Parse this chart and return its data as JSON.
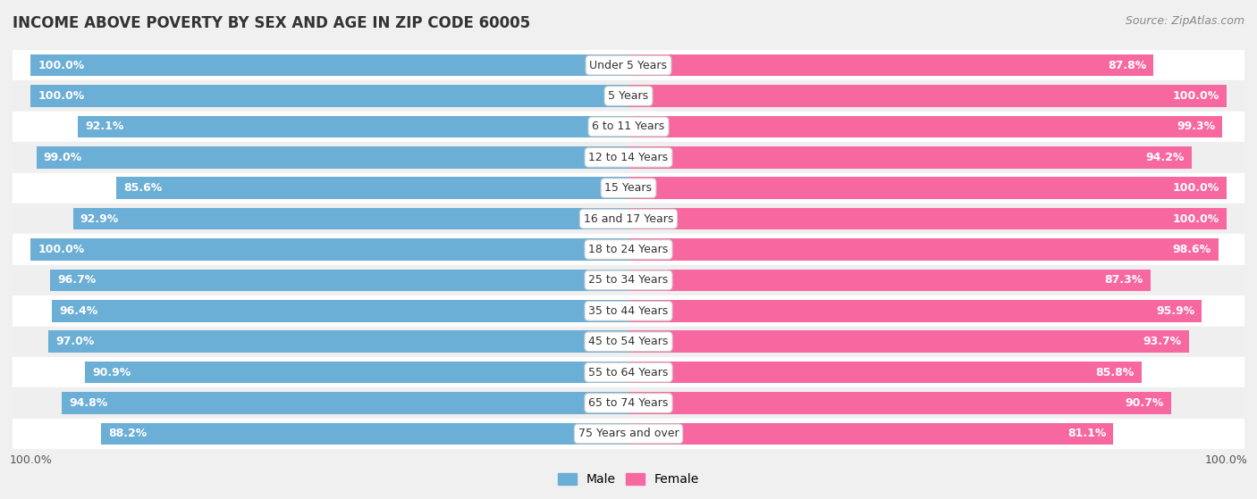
{
  "title": "INCOME ABOVE POVERTY BY SEX AND AGE IN ZIP CODE 60005",
  "source": "Source: ZipAtlas.com",
  "categories": [
    "Under 5 Years",
    "5 Years",
    "6 to 11 Years",
    "12 to 14 Years",
    "15 Years",
    "16 and 17 Years",
    "18 to 24 Years",
    "25 to 34 Years",
    "35 to 44 Years",
    "45 to 54 Years",
    "55 to 64 Years",
    "65 to 74 Years",
    "75 Years and over"
  ],
  "male_values": [
    100.0,
    100.0,
    92.1,
    99.0,
    85.6,
    92.9,
    100.0,
    96.7,
    96.4,
    97.0,
    90.9,
    94.8,
    88.2
  ],
  "female_values": [
    87.8,
    100.0,
    99.3,
    94.2,
    100.0,
    100.0,
    98.6,
    87.3,
    95.9,
    93.7,
    85.8,
    90.7,
    81.1
  ],
  "male_color": "#6baed6",
  "female_color": "#f768a1",
  "male_label": "Male",
  "female_label": "Female",
  "row_colors": [
    "#ffffff",
    "#efefef"
  ],
  "background_color": "#f0f0f0",
  "title_fontsize": 12,
  "source_fontsize": 9,
  "label_fontsize": 9,
  "value_fontsize": 9,
  "tick_fontsize": 9,
  "bar_height": 0.72,
  "legend_fontsize": 10
}
